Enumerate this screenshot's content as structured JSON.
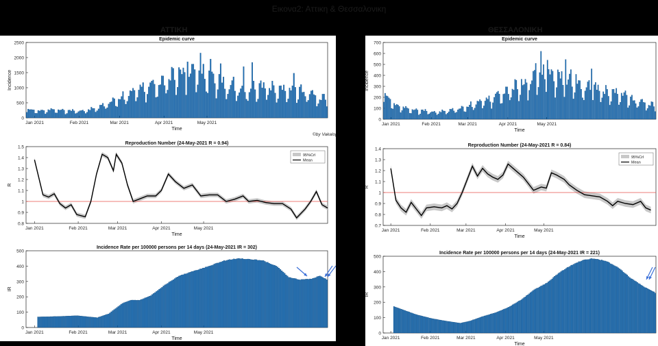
{
  "slide_title": "Εικονα2: Αττικη & Θεσσαλονικη",
  "regions": [
    {
      "name": "ΑΤΤΙΚΗ"
    },
    {
      "name": "ΘΕΣΣΑΛΟΝΙΚΗ"
    }
  ],
  "watermark": "©by Vakalopoulos Med School of Thessaloniki, Univ of Crete",
  "colors": {
    "bar": "#1f6fb5",
    "bar_edge": "#0b3f6e",
    "mean_line": "#000000",
    "cri_band": "#c8c8c8",
    "ref_line": "#e8514b",
    "arrow": "#3a6fd8"
  },
  "chart_data": [
    {
      "region": "ΑΤΤΙΚΗ",
      "type": "bar",
      "title": "Epidemic curve",
      "xlabel": "Time",
      "ylabel": "Incidence",
      "ylim": [
        0,
        2500
      ],
      "yticks": [
        0,
        500,
        1000,
        1500,
        2000,
        2500
      ],
      "xticks": [
        "Jan 2021",
        "Feb 2021",
        "Mar 2021",
        "Apr 2021",
        "May 2021"
      ],
      "weekly_profile": [
        0.7,
        1.05,
        1.1,
        1.15,
        1.2,
        1.0,
        0.6
      ],
      "anchors": [
        [
          0,
          250
        ],
        [
          10,
          230
        ],
        [
          20,
          260
        ],
        [
          30,
          210
        ],
        [
          40,
          220
        ],
        [
          50,
          330
        ],
        [
          60,
          560
        ],
        [
          70,
          700
        ],
        [
          80,
          950
        ],
        [
          90,
          1100
        ],
        [
          100,
          1300
        ],
        [
          110,
          1450
        ],
        [
          120,
          1400
        ],
        [
          130,
          1300
        ],
        [
          140,
          1050
        ],
        [
          150,
          900
        ],
        [
          160,
          1000
        ],
        [
          170,
          950
        ],
        [
          180,
          850
        ],
        [
          190,
          900
        ],
        [
          200,
          700
        ],
        [
          204,
          600
        ]
      ],
      "spikes": [
        [
          121,
          2150
        ],
        [
          128,
          1950
        ],
        [
          112,
          1860
        ],
        [
          135,
          1800
        ],
        [
          151,
          1700
        ],
        [
          157,
          1840
        ],
        [
          107,
          1600
        ],
        [
          186,
          1480
        ]
      ]
    },
    {
      "region": "ΑΤΤΙΚΗ",
      "type": "line",
      "title": "Reproduction Number (24-May-2021 R = 0.94)",
      "xlabel": "Time",
      "ylabel": "R",
      "ylim": [
        0.8,
        1.5
      ],
      "yticks": [
        0.8,
        0.9,
        1,
        1.1,
        1.2,
        1.3,
        1.4,
        1.5
      ],
      "xticks": [
        "Jan 2021",
        "Feb 2021",
        "Mar 2021",
        "Apr 2021",
        "May 2021"
      ],
      "legend": [
        "95%CrI",
        "Mean"
      ],
      "legend_position": "top-right",
      "reference_line": 1,
      "series": [
        [
          0,
          1.38
        ],
        [
          6,
          1.06
        ],
        [
          10,
          1.04
        ],
        [
          14,
          1.07
        ],
        [
          18,
          0.98
        ],
        [
          22,
          0.94
        ],
        [
          26,
          0.97
        ],
        [
          30,
          0.88
        ],
        [
          36,
          0.86
        ],
        [
          40,
          1.0
        ],
        [
          44,
          1.25
        ],
        [
          48,
          1.43
        ],
        [
          52,
          1.4
        ],
        [
          56,
          1.28
        ],
        [
          58,
          1.43
        ],
        [
          62,
          1.35
        ],
        [
          66,
          1.15
        ],
        [
          70,
          1.0
        ],
        [
          74,
          1.02
        ],
        [
          80,
          1.05
        ],
        [
          86,
          1.05
        ],
        [
          90,
          1.1
        ],
        [
          95,
          1.25
        ],
        [
          100,
          1.18
        ],
        [
          106,
          1.12
        ],
        [
          112,
          1.15
        ],
        [
          118,
          1.05
        ],
        [
          124,
          1.06
        ],
        [
          130,
          1.06
        ],
        [
          136,
          1.0
        ],
        [
          142,
          1.02
        ],
        [
          148,
          1.05
        ],
        [
          152,
          1.0
        ],
        [
          158,
          1.01
        ],
        [
          164,
          0.99
        ],
        [
          170,
          0.98
        ],
        [
          176,
          0.98
        ],
        [
          182,
          0.93
        ],
        [
          186,
          0.85
        ],
        [
          192,
          0.93
        ],
        [
          196,
          1.0
        ],
        [
          200,
          1.09
        ],
        [
          204,
          0.97
        ],
        [
          208,
          0.94
        ]
      ],
      "band_halfwidth": 0.02
    },
    {
      "region": "ΑΤΤΙΚΗ",
      "type": "bar",
      "title": "Incidence Rate per 100000 persons per 14 days (24-May-2021 IR = 302)",
      "xlabel": "Time",
      "ylabel": "IR",
      "ylim": [
        0,
        500
      ],
      "yticks": [
        0,
        100,
        200,
        300,
        400,
        500
      ],
      "xticks": [
        "Jan 2021",
        "Feb 2021",
        "Mar 2021",
        "Apr 2021",
        "May 2021"
      ],
      "anchors": [
        [
          0,
          70
        ],
        [
          14,
          73
        ],
        [
          28,
          78
        ],
        [
          42,
          65
        ],
        [
          50,
          90
        ],
        [
          60,
          160
        ],
        [
          66,
          180
        ],
        [
          72,
          180
        ],
        [
          80,
          210
        ],
        [
          90,
          280
        ],
        [
          100,
          340
        ],
        [
          110,
          370
        ],
        [
          120,
          400
        ],
        [
          132,
          440
        ],
        [
          142,
          455
        ],
        [
          150,
          450
        ],
        [
          160,
          440
        ],
        [
          170,
          400
        ],
        [
          178,
          330
        ],
        [
          186,
          315
        ],
        [
          194,
          320
        ],
        [
          200,
          340
        ],
        [
          208,
          302
        ]
      ]
    },
    {
      "region": "ΘΕΣΣΑΛΟΝΙΚΗ",
      "type": "bar",
      "title": "Epidemic curve",
      "xlabel": "Time",
      "ylabel": "Incidence",
      "ylim": [
        0,
        700
      ],
      "yticks": [
        0,
        100,
        200,
        300,
        400,
        500,
        600,
        700
      ],
      "xticks": [
        "Jan 2021",
        "Feb 2021",
        "Mar 2021",
        "Apr 2021",
        "May 2021"
      ],
      "weekly_profile": [
        0.7,
        1.05,
        1.1,
        1.15,
        1.2,
        1.0,
        0.6
      ],
      "anchors": [
        [
          0,
          210
        ],
        [
          10,
          120
        ],
        [
          20,
          85
        ],
        [
          30,
          70
        ],
        [
          40,
          60
        ],
        [
          50,
          75
        ],
        [
          60,
          100
        ],
        [
          70,
          130
        ],
        [
          80,
          170
        ],
        [
          90,
          230
        ],
        [
          100,
          280
        ],
        [
          110,
          320
        ],
        [
          120,
          380
        ],
        [
          130,
          390
        ],
        [
          140,
          350
        ],
        [
          150,
          300
        ],
        [
          160,
          280
        ],
        [
          170,
          240
        ],
        [
          180,
          220
        ],
        [
          190,
          180
        ],
        [
          200,
          140
        ],
        [
          210,
          110
        ]
      ],
      "spikes": [
        [
          121,
          620
        ],
        [
          126,
          540
        ],
        [
          117,
          510
        ],
        [
          140,
          545
        ],
        [
          135,
          430
        ],
        [
          160,
          460
        ],
        [
          148,
          410
        ]
      ]
    },
    {
      "region": "ΘΕΣΣΑΛΟΝΙΚΗ",
      "type": "line",
      "title": "Reproduction Number (24-May-2021 R = 0.84)",
      "xlabel": "Time",
      "ylabel": "R",
      "ylim": [
        0.7,
        1.4
      ],
      "yticks": [
        0.7,
        0.8,
        0.9,
        1,
        1.1,
        1.2,
        1.3,
        1.4
      ],
      "xticks": [
        "Jan 2021",
        "Feb 2021",
        "Mar 2021",
        "Apr 2021",
        "May 2021"
      ],
      "legend": [
        "95%CrI",
        "Mean"
      ],
      "legend_position": "top-right",
      "reference_line": 1,
      "series": [
        [
          0,
          1.22
        ],
        [
          4,
          0.93
        ],
        [
          8,
          0.86
        ],
        [
          12,
          0.82
        ],
        [
          16,
          0.91
        ],
        [
          20,
          0.85
        ],
        [
          24,
          0.79
        ],
        [
          28,
          0.86
        ],
        [
          34,
          0.87
        ],
        [
          40,
          0.86
        ],
        [
          44,
          0.88
        ],
        [
          48,
          0.85
        ],
        [
          52,
          0.9
        ],
        [
          56,
          1.0
        ],
        [
          60,
          1.12
        ],
        [
          64,
          1.24
        ],
        [
          68,
          1.15
        ],
        [
          72,
          1.22
        ],
        [
          76,
          1.17
        ],
        [
          80,
          1.14
        ],
        [
          84,
          1.12
        ],
        [
          88,
          1.16
        ],
        [
          92,
          1.26
        ],
        [
          96,
          1.22
        ],
        [
          100,
          1.18
        ],
        [
          104,
          1.14
        ],
        [
          108,
          1.08
        ],
        [
          112,
          1.02
        ],
        [
          118,
          1.05
        ],
        [
          122,
          1.04
        ],
        [
          126,
          1.18
        ],
        [
          130,
          1.16
        ],
        [
          136,
          1.12
        ],
        [
          140,
          1.07
        ],
        [
          146,
          1.02
        ],
        [
          152,
          0.98
        ],
        [
          158,
          0.97
        ],
        [
          164,
          0.96
        ],
        [
          170,
          0.92
        ],
        [
          174,
          0.88
        ],
        [
          178,
          0.92
        ],
        [
          184,
          0.9
        ],
        [
          190,
          0.89
        ],
        [
          196,
          0.92
        ],
        [
          200,
          0.86
        ],
        [
          204,
          0.84
        ]
      ],
      "band_halfwidth": 0.03
    },
    {
      "region": "ΘΕΣΣΑΛΟΝΙΚΗ",
      "type": "bar",
      "title": "Incidence Rate per 100000 persons per 14 days (24-May-2021 IR = 221)",
      "xlabel": "Time",
      "ylabel": "IR",
      "ylim": [
        0,
        500
      ],
      "yticks": [
        0,
        100,
        200,
        300,
        400,
        500
      ],
      "xticks": [
        "Jan 2021",
        "Feb 2021",
        "Mar 2021",
        "Apr 2021",
        "May 2021"
      ],
      "anchors": [
        [
          0,
          175
        ],
        [
          8,
          150
        ],
        [
          18,
          120
        ],
        [
          30,
          95
        ],
        [
          40,
          80
        ],
        [
          52,
          65
        ],
        [
          60,
          80
        ],
        [
          70,
          110
        ],
        [
          80,
          135
        ],
        [
          90,
          170
        ],
        [
          100,
          220
        ],
        [
          110,
          285
        ],
        [
          120,
          330
        ],
        [
          130,
          400
        ],
        [
          140,
          450
        ],
        [
          148,
          480
        ],
        [
          156,
          490
        ],
        [
          166,
          475
        ],
        [
          176,
          430
        ],
        [
          186,
          360
        ],
        [
          196,
          305
        ],
        [
          204,
          270
        ],
        [
          212,
          221
        ]
      ]
    }
  ]
}
